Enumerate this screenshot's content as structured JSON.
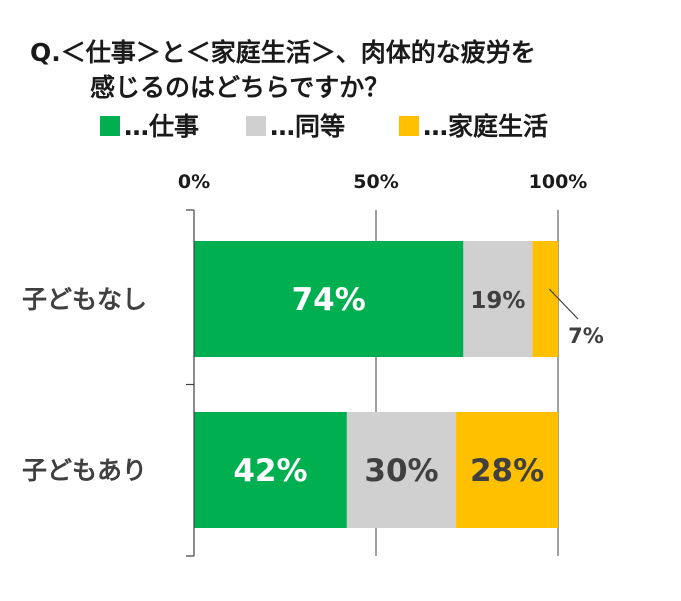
{
  "title": {
    "line1": "Q.＜仕事＞と＜家庭生活＞、肉体的な疲労を",
    "line2": "感じるのはどちらですか？"
  },
  "legend": [
    {
      "label": "…仕事",
      "color": "#00b050"
    },
    {
      "label": "…同等",
      "color": "#d0d0d0"
    },
    {
      "label": "…家庭生活",
      "color": "#ffc000"
    }
  ],
  "chart_data": {
    "type": "bar",
    "orientation": "horizontal",
    "stacked": true,
    "percent_scale": true,
    "xlim": [
      0,
      100
    ],
    "x_ticks": [
      "0%",
      "50%",
      "100%"
    ],
    "x_tick_values": [
      0,
      50,
      100
    ],
    "categories": [
      "子どもなし",
      "子どもあり"
    ],
    "series": [
      {
        "name": "仕事",
        "color": "#00b050",
        "values": [
          74,
          42
        ],
        "labels": [
          "74%",
          "42%"
        ],
        "label_color": "#ffffff"
      },
      {
        "name": "同等",
        "color": "#d0d0d0",
        "values": [
          19,
          30
        ],
        "labels": [
          "19%",
          "30%"
        ],
        "label_color": "#404040"
      },
      {
        "name": "家庭生活",
        "color": "#ffc000",
        "values": [
          7,
          28
        ],
        "labels": [
          "7%",
          "28%"
        ],
        "label_color": "#404040"
      }
    ],
    "grid": true,
    "legend_position": "top"
  }
}
